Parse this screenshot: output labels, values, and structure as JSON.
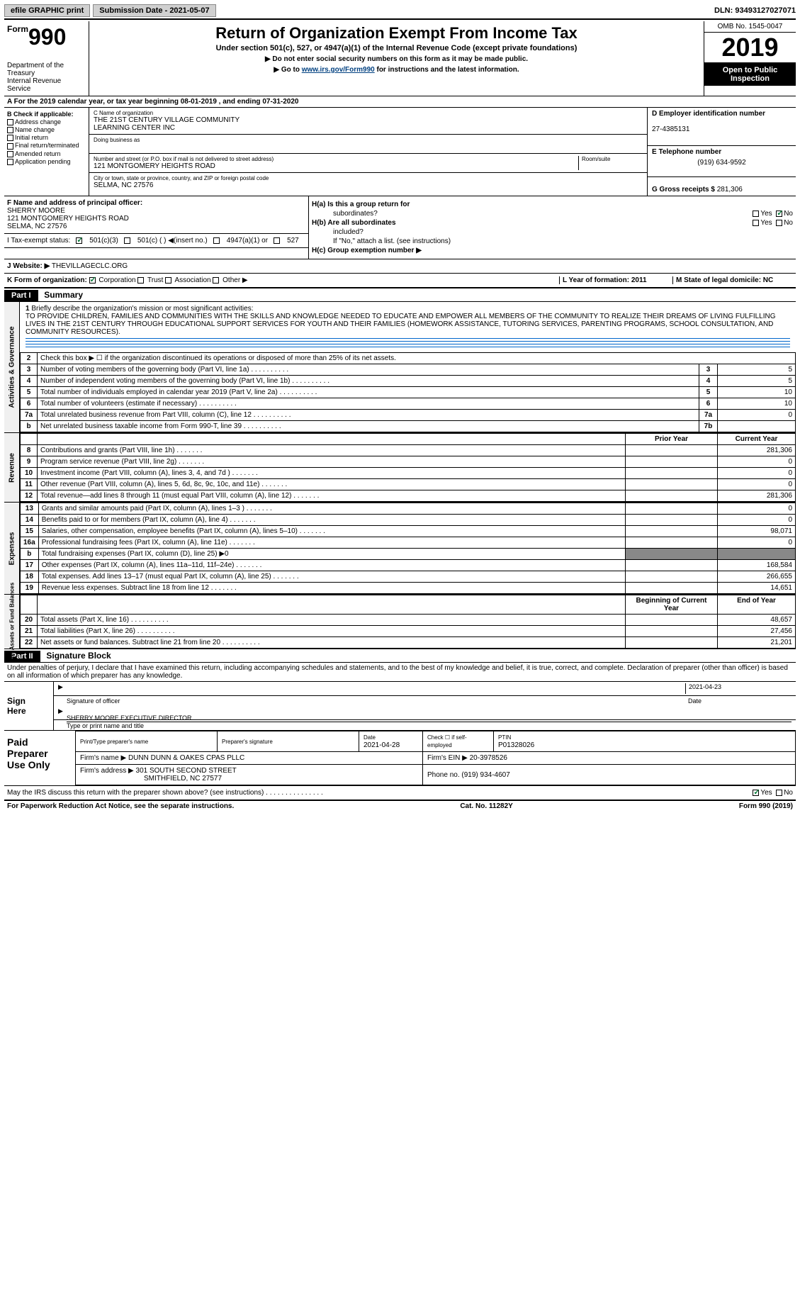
{
  "topbar": {
    "efile_label": "efile GRAPHIC print",
    "submission": "Submission Date - 2021-05-07",
    "dln": "DLN: 93493127027071"
  },
  "header": {
    "form_word": "Form",
    "form_num": "990",
    "dept1": "Department of the",
    "dept2": "Treasury",
    "dept3": "Internal Revenue Service",
    "title": "Return of Organization Exempt From Income Tax",
    "subtitle": "Under section 501(c), 527, or 4947(a)(1) of the Internal Revenue Code (except private foundations)",
    "warn": "Do not enter social security numbers on this form as it may be made public.",
    "goto_pre": "Go to ",
    "goto_link": "www.irs.gov/Form990",
    "goto_post": " for instructions and the latest information.",
    "omb": "OMB No. 1545-0047",
    "year": "2019",
    "inspect1": "Open to Public",
    "inspect2": "Inspection"
  },
  "rowA": "A For the 2019 calendar year, or tax year beginning 08-01-2019   , and ending 07-31-2020",
  "boxB": {
    "title": "B Check if applicable:",
    "items": [
      "Address change",
      "Name change",
      "Initial return",
      "Final return/terminated",
      "Amended return",
      "Application pending"
    ]
  },
  "boxC": {
    "name_label": "C Name of organization",
    "name1": "THE 21ST CENTURY VILLAGE COMMUNITY",
    "name2": "LEARNING CENTER INC",
    "dba_label": "Doing business as",
    "street_label": "Number and street (or P.O. box if mail is not delivered to street address)",
    "room_label": "Room/suite",
    "street": "121 MONTGOMERY HEIGHTS ROAD",
    "city_label": "City or town, state or province, country, and ZIP or foreign postal code",
    "city": "SELMA, NC  27576"
  },
  "boxD": {
    "label": "D Employer identification number",
    "ein": "27-4385131"
  },
  "boxE": {
    "label": "E Telephone number",
    "phone": "(919) 634-9592"
  },
  "boxG": {
    "label": "G Gross receipts $",
    "amount": "281,306"
  },
  "boxF": {
    "label": "F  Name and address of principal officer:",
    "name": "SHERRY MOORE",
    "addr1": "121 MONTGOMERY HEIGHTS ROAD",
    "addr2": "SELMA, NC  27576"
  },
  "Ha": {
    "label": "H(a)  Is this a group return for",
    "sub": "subordinates?",
    "yes": "Yes",
    "no": "No"
  },
  "Hb": {
    "label": "H(b)  Are all subordinates",
    "sub": "included?",
    "yes": "Yes",
    "no": "No",
    "note": "If \"No,\" attach a list. (see instructions)"
  },
  "Hc": "H(c)  Group exemption number ▶",
  "lineI": {
    "label": "I   Tax-exempt status:",
    "o1": "501(c)(3)",
    "o2": "501(c) (   ) ◀(insert no.)",
    "o3": "4947(a)(1) or",
    "o4": "527"
  },
  "lineJ": {
    "label": "J   Website: ▶",
    "url": "THEVILLAGECLC.ORG"
  },
  "lineK": {
    "label": "K Form of organization:",
    "o1": "Corporation",
    "o2": "Trust",
    "o3": "Association",
    "o4": "Other ▶",
    "L": "L Year of formation: 2011",
    "M": "M State of legal domicile: NC"
  },
  "partI": {
    "num": "Part I",
    "title": "Summary"
  },
  "side": {
    "ag": "Activities & Governance",
    "rev": "Revenue",
    "exp": "Expenses",
    "net": "Net Assets or\nFund Balances"
  },
  "q1": {
    "num": "1",
    "label": "Briefly describe the organization's mission or most significant activities:",
    "text": "TO PROVIDE CHILDREN, FAMILIES AND COMMUNITIES WITH THE SKILLS AND KNOWLEDGE NEEDED TO EDUCATE AND EMPOWER ALL MEMBERS OF THE COMMUNITY TO REALIZE THEIR DREAMS OF LIVING FULFILLING LIVES IN THE 21ST CENTURY THROUGH EDUCATIONAL SUPPORT SERVICES FOR YOUTH AND THEIR FAMILIES (HOMEWORK ASSISTANCE, TUTORING SERVICES, PARENTING PROGRAMS, SCHOOL CONSULTATION, AND COMMUNITY RESOURCES)."
  },
  "q2": "Check this box ▶ ☐  if the organization discontinued its operations or disposed of more than 25% of its net assets.",
  "rows_gov": [
    {
      "n": "3",
      "t": "Number of voting members of the governing body (Part VI, line 1a)",
      "b": "3",
      "v": "5"
    },
    {
      "n": "4",
      "t": "Number of independent voting members of the governing body (Part VI, line 1b)",
      "b": "4",
      "v": "5"
    },
    {
      "n": "5",
      "t": "Total number of individuals employed in calendar year 2019 (Part V, line 2a)",
      "b": "5",
      "v": "10"
    },
    {
      "n": "6",
      "t": "Total number of volunteers (estimate if necessary)",
      "b": "6",
      "v": "10"
    },
    {
      "n": "7a",
      "t": "Total unrelated business revenue from Part VIII, column (C), line 12",
      "b": "7a",
      "v": "0"
    },
    {
      "n": "b",
      "t": "Net unrelated business taxable income from Form 990-T, line 39",
      "b": "7b",
      "v": ""
    }
  ],
  "hdr_prior": "Prior Year",
  "hdr_curr": "Current Year",
  "rows_rev": [
    {
      "n": "8",
      "t": "Contributions and grants (Part VIII, line 1h)",
      "p": "",
      "c": "281,306"
    },
    {
      "n": "9",
      "t": "Program service revenue (Part VIII, line 2g)",
      "p": "",
      "c": "0"
    },
    {
      "n": "10",
      "t": "Investment income (Part VIII, column (A), lines 3, 4, and 7d )",
      "p": "",
      "c": "0"
    },
    {
      "n": "11",
      "t": "Other revenue (Part VIII, column (A), lines 5, 6d, 8c, 9c, 10c, and 11e)",
      "p": "",
      "c": "0"
    },
    {
      "n": "12",
      "t": "Total revenue—add lines 8 through 11 (must equal Part VIII, column (A), line 12)",
      "p": "",
      "c": "281,306"
    }
  ],
  "rows_exp": [
    {
      "n": "13",
      "t": "Grants and similar amounts paid (Part IX, column (A), lines 1–3 )",
      "p": "",
      "c": "0"
    },
    {
      "n": "14",
      "t": "Benefits paid to or for members (Part IX, column (A), line 4)",
      "p": "",
      "c": "0"
    },
    {
      "n": "15",
      "t": "Salaries, other compensation, employee benefits (Part IX, column (A), lines 5–10)",
      "p": "",
      "c": "98,071"
    },
    {
      "n": "16a",
      "t": "Professional fundraising fees (Part IX, column (A), line 11e)",
      "p": "",
      "c": "0"
    },
    {
      "n": "b",
      "t": "Total fundraising expenses (Part IX, column (D), line 25) ▶0",
      "gray": true
    },
    {
      "n": "17",
      "t": "Other expenses (Part IX, column (A), lines 11a–11d, 11f–24e)",
      "p": "",
      "c": "168,584"
    },
    {
      "n": "18",
      "t": "Total expenses. Add lines 13–17 (must equal Part IX, column (A), line 25)",
      "p": "",
      "c": "266,655"
    },
    {
      "n": "19",
      "t": "Revenue less expenses. Subtract line 18 from line 12",
      "p": "",
      "c": "14,651"
    }
  ],
  "hdr_beg": "Beginning of Current Year",
  "hdr_end": "End of Year",
  "rows_net": [
    {
      "n": "20",
      "t": "Total assets (Part X, line 16)",
      "p": "",
      "c": "48,657"
    },
    {
      "n": "21",
      "t": "Total liabilities (Part X, line 26)",
      "p": "",
      "c": "27,456"
    },
    {
      "n": "22",
      "t": "Net assets or fund balances. Subtract line 21 from line 20",
      "p": "",
      "c": "21,201"
    }
  ],
  "partII": {
    "num": "Part II",
    "title": "Signature Block"
  },
  "perjury": "Under penalties of perjury, I declare that I have examined this return, including accompanying schedules and statements, and to the best of my knowledge and belief, it is true, correct, and complete. Declaration of preparer (other than officer) is based on all information of which preparer has any knowledge.",
  "sign": {
    "here": "Sign\nHere",
    "sig_of_officer": "Signature of officer",
    "date": "2021-04-23",
    "date_lbl": "Date",
    "typed": "SHERRY MOORE  EXECUTIVE DIRECTOR",
    "typed_lbl": "Type or print name and title"
  },
  "paid": {
    "label": "Paid\nPreparer\nUse Only",
    "h1": "Print/Type preparer's name",
    "h2": "Preparer's signature",
    "h3": "Date",
    "h3v": "2021-04-28",
    "h4": "Check ☐ if self-employed",
    "h5": "PTIN",
    "h5v": "P01328026",
    "firm_lbl": "Firm's name    ▶",
    "firm": "DUNN DUNN & OAKES CPAS PLLC",
    "ein_lbl": "Firm's EIN ▶",
    "ein": "20-3978526",
    "addr_lbl": "Firm's address ▶",
    "addr1": "301 SOUTH SECOND STREET",
    "addr2": "SMITHFIELD, NC  27577",
    "phone_lbl": "Phone no.",
    "phone": "(919) 934-4607"
  },
  "discuss": {
    "q": "May the IRS discuss this return with the preparer shown above? (see instructions)",
    "yes": "Yes",
    "no": "No"
  },
  "footer": {
    "left": "For Paperwork Reduction Act Notice, see the separate instructions.",
    "mid": "Cat. No. 11282Y",
    "right": "Form 990 (2019)"
  }
}
